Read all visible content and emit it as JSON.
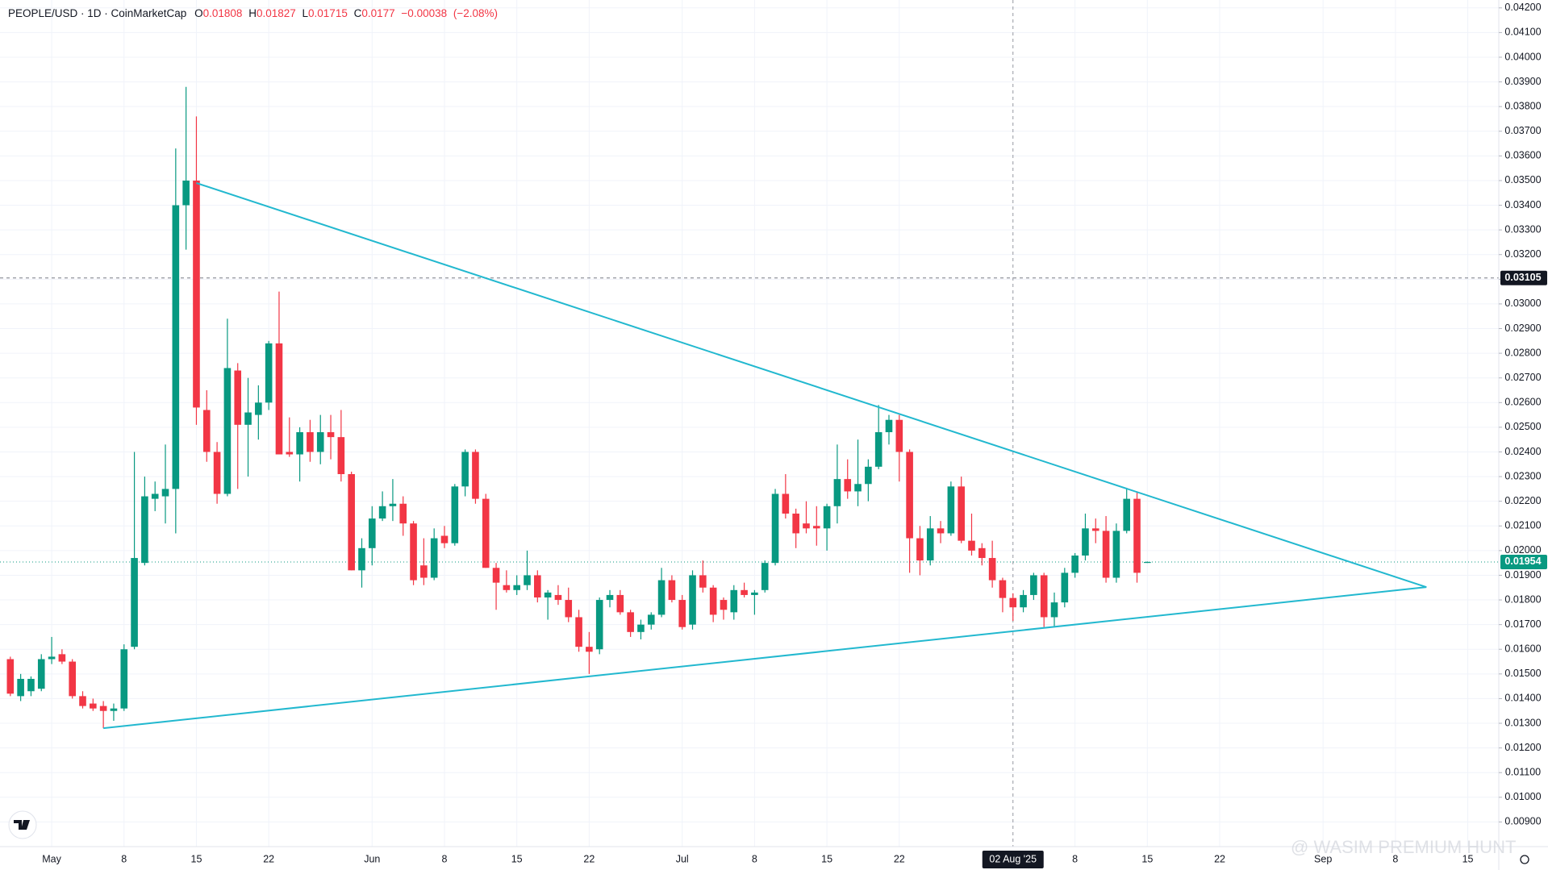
{
  "chart_data": {
    "type": "candlestick",
    "title": "PEOPLE/USD · 1D · CoinMarketCap",
    "ohlc_labels": [
      "O",
      "H",
      "L",
      "C"
    ],
    "change": {
      "value": -0.00038,
      "label": "−0.00038"
    },
    "change_pct": {
      "value": -2.08,
      "label": "(−2.08%)"
    },
    "up_color": "#089981",
    "down_color": "#f23645",
    "x": [
      "2025-04-27",
      "2025-04-28",
      "2025-04-29",
      "2025-04-30",
      "2025-05-01",
      "2025-05-02",
      "2025-05-03",
      "2025-05-04",
      "2025-05-05",
      "2025-05-06",
      "2025-05-07",
      "2025-05-08",
      "2025-05-09",
      "2025-05-10",
      "2025-05-11",
      "2025-05-12",
      "2025-05-13",
      "2025-05-14",
      "2025-05-15",
      "2025-05-16",
      "2025-05-17",
      "2025-05-18",
      "2025-05-19",
      "2025-05-20",
      "2025-05-21",
      "2025-05-22",
      "2025-05-23",
      "2025-05-24",
      "2025-05-25",
      "2025-05-26",
      "2025-05-27",
      "2025-05-28",
      "2025-05-29",
      "2025-05-30",
      "2025-05-31",
      "2025-06-01",
      "2025-06-02",
      "2025-06-03",
      "2025-06-04",
      "2025-06-05",
      "2025-06-06",
      "2025-06-07",
      "2025-06-08",
      "2025-06-09",
      "2025-06-10",
      "2025-06-11",
      "2025-06-12",
      "2025-06-13",
      "2025-06-14",
      "2025-06-15",
      "2025-06-16",
      "2025-06-17",
      "2025-06-18",
      "2025-06-19",
      "2025-06-20",
      "2025-06-21",
      "2025-06-22",
      "2025-06-23",
      "2025-06-24",
      "2025-06-25",
      "2025-06-26",
      "2025-06-27",
      "2025-06-28",
      "2025-06-29",
      "2025-06-30",
      "2025-07-01",
      "2025-07-02",
      "2025-07-03",
      "2025-07-04",
      "2025-07-05",
      "2025-07-06",
      "2025-07-07",
      "2025-07-08",
      "2025-07-09",
      "2025-07-10",
      "2025-07-11",
      "2025-07-12",
      "2025-07-13",
      "2025-07-14",
      "2025-07-15",
      "2025-07-16",
      "2025-07-17",
      "2025-07-18",
      "2025-07-19",
      "2025-07-20",
      "2025-07-21",
      "2025-07-22",
      "2025-07-23",
      "2025-07-24",
      "2025-07-25",
      "2025-07-26",
      "2025-07-27",
      "2025-07-28",
      "2025-07-29",
      "2025-07-30",
      "2025-07-31",
      "2025-08-01",
      "2025-08-02",
      "2025-08-03",
      "2025-08-04",
      "2025-08-05",
      "2025-08-06",
      "2025-08-07",
      "2025-08-08",
      "2025-08-09",
      "2025-08-10",
      "2025-08-11",
      "2025-08-12",
      "2025-08-13",
      "2025-08-14",
      "2025-08-15"
    ],
    "open": [
      0.0156,
      0.0141,
      0.0143,
      0.0144,
      0.0156,
      0.0158,
      0.0155,
      0.0141,
      0.0138,
      0.0137,
      0.0135,
      0.0136,
      0.0161,
      0.0195,
      0.0221,
      0.0222,
      0.0225,
      0.034,
      0.035,
      0.0257,
      0.024,
      0.0223,
      0.0273,
      0.0251,
      0.0255,
      0.026,
      0.0284,
      0.024,
      0.0239,
      0.0248,
      0.024,
      0.0248,
      0.0246,
      0.0231,
      0.0192,
      0.0201,
      0.0213,
      0.0218,
      0.0219,
      0.0211,
      0.0194,
      0.0189,
      0.0206,
      0.0203,
      0.0226,
      0.024,
      0.0221,
      0.0193,
      0.0186,
      0.0184,
      0.0186,
      0.019,
      0.0181,
      0.0182,
      0.018,
      0.0173,
      0.0161,
      0.016,
      0.018,
      0.0182,
      0.0175,
      0.0167,
      0.017,
      0.0174,
      0.0188,
      0.018,
      0.017,
      0.019,
      0.0185,
      0.018,
      0.0175,
      0.0184,
      0.0182,
      0.0184,
      0.0195,
      0.0223,
      0.0215,
      0.0211,
      0.021,
      0.0209,
      0.0218,
      0.0229,
      0.0224,
      0.0227,
      0.0234,
      0.0248,
      0.0253,
      0.024,
      0.0205,
      0.0196,
      0.0209,
      0.0207,
      0.0226,
      0.0204,
      0.0201,
      0.0197,
      0.0188,
      0.01808,
      0.0177,
      0.0182,
      0.019,
      0.0173,
      0.0179,
      0.0191,
      0.0198,
      0.0209,
      0.0208,
      0.0189,
      0.0208,
      0.0221,
      0.0195
    ],
    "high": [
      0.0157,
      0.015,
      0.0149,
      0.0158,
      0.0165,
      0.016,
      0.0156,
      0.0143,
      0.014,
      0.0139,
      0.0138,
      0.0162,
      0.024,
      0.023,
      0.0228,
      0.0243,
      0.0363,
      0.0388,
      0.0376,
      0.0265,
      0.0244,
      0.0294,
      0.0276,
      0.027,
      0.0267,
      0.0285,
      0.0305,
      0.0254,
      0.025,
      0.0253,
      0.0255,
      0.0255,
      0.0257,
      0.0232,
      0.0205,
      0.0218,
      0.0224,
      0.0229,
      0.0222,
      0.0212,
      0.0205,
      0.0209,
      0.021,
      0.0227,
      0.0241,
      0.0241,
      0.0223,
      0.0195,
      0.0192,
      0.019,
      0.02,
      0.0192,
      0.0184,
      0.0186,
      0.0185,
      0.0176,
      0.0167,
      0.0181,
      0.0184,
      0.0184,
      0.0176,
      0.0172,
      0.0175,
      0.0193,
      0.019,
      0.0182,
      0.0192,
      0.0196,
      0.0186,
      0.0181,
      0.0186,
      0.0187,
      0.0184,
      0.0196,
      0.0225,
      0.0231,
      0.0217,
      0.022,
      0.0218,
      0.0219,
      0.0243,
      0.0237,
      0.0245,
      0.0237,
      0.0259,
      0.0255,
      0.0255,
      0.0241,
      0.021,
      0.0214,
      0.0212,
      0.0228,
      0.023,
      0.0215,
      0.0203,
      0.0204,
      0.0189,
      0.01827,
      0.0184,
      0.0191,
      0.0191,
      0.0183,
      0.0193,
      0.0199,
      0.0215,
      0.0213,
      0.0214,
      0.0211,
      0.0225,
      0.0224,
      0.01956
    ],
    "low": [
      0.0141,
      0.0139,
      0.0141,
      0.0143,
      0.0154,
      0.0154,
      0.014,
      0.0136,
      0.0135,
      0.0128,
      0.0131,
      0.0135,
      0.016,
      0.0194,
      0.0216,
      0.0211,
      0.0207,
      0.0322,
      0.0251,
      0.0236,
      0.0219,
      0.0222,
      0.0225,
      0.023,
      0.0245,
      0.0257,
      0.0239,
      0.0238,
      0.0228,
      0.0236,
      0.0235,
      0.0237,
      0.0228,
      0.0192,
      0.0185,
      0.0194,
      0.0212,
      0.0212,
      0.0206,
      0.0186,
      0.0186,
      0.0188,
      0.0201,
      0.0202,
      0.0222,
      0.0219,
      0.0193,
      0.0176,
      0.0183,
      0.0182,
      0.0184,
      0.0179,
      0.0172,
      0.0178,
      0.0171,
      0.0159,
      0.015,
      0.0158,
      0.0177,
      0.0174,
      0.0165,
      0.0164,
      0.0168,
      0.0173,
      0.0179,
      0.0168,
      0.0168,
      0.0183,
      0.0171,
      0.0172,
      0.0172,
      0.0181,
      0.0174,
      0.0183,
      0.0194,
      0.0213,
      0.0201,
      0.0207,
      0.0202,
      0.02,
      0.0211,
      0.0221,
      0.0218,
      0.022,
      0.0233,
      0.0243,
      0.0228,
      0.0191,
      0.019,
      0.0194,
      0.0203,
      0.0206,
      0.0203,
      0.0198,
      0.0194,
      0.0185,
      0.0175,
      0.01715,
      0.0175,
      0.018,
      0.0169,
      0.0169,
      0.0177,
      0.0189,
      0.0196,
      0.0203,
      0.0187,
      0.0187,
      0.0207,
      0.0187,
      0.0195
    ],
    "close": [
      0.0142,
      0.0148,
      0.0148,
      0.0156,
      0.0157,
      0.0155,
      0.0141,
      0.0137,
      0.0136,
      0.0135,
      0.0136,
      0.016,
      0.0197,
      0.0222,
      0.0223,
      0.0225,
      0.034,
      0.035,
      0.0258,
      0.024,
      0.0223,
      0.0274,
      0.0251,
      0.0256,
      0.026,
      0.0284,
      0.0239,
      0.0239,
      0.0248,
      0.024,
      0.0248,
      0.0246,
      0.0231,
      0.0192,
      0.0201,
      0.0213,
      0.0218,
      0.0219,
      0.0211,
      0.0188,
      0.0189,
      0.0205,
      0.0203,
      0.0226,
      0.024,
      0.0221,
      0.0193,
      0.0187,
      0.0184,
      0.0186,
      0.019,
      0.0181,
      0.0183,
      0.018,
      0.0173,
      0.0161,
      0.0159,
      0.018,
      0.0182,
      0.0175,
      0.0167,
      0.017,
      0.0174,
      0.0188,
      0.018,
      0.0169,
      0.019,
      0.0185,
      0.0174,
      0.0176,
      0.0184,
      0.0182,
      0.0183,
      0.0195,
      0.0223,
      0.0215,
      0.0207,
      0.0209,
      0.0209,
      0.0218,
      0.0229,
      0.0224,
      0.0227,
      0.0234,
      0.0248,
      0.0253,
      0.024,
      0.0205,
      0.0196,
      0.0209,
      0.0207,
      0.0226,
      0.0204,
      0.02,
      0.0197,
      0.0188,
      0.01808,
      0.0177,
      0.0182,
      0.019,
      0.0173,
      0.0179,
      0.0191,
      0.0198,
      0.0209,
      0.0208,
      0.0189,
      0.0208,
      0.0221,
      0.0191,
      0.01954
    ],
    "xlim": [
      "2025-04-26",
      "2025-09-18"
    ],
    "xticks": [
      {
        "value": "2025-05-01",
        "label": "May"
      },
      {
        "value": "2025-05-08",
        "label": "8"
      },
      {
        "value": "2025-05-15",
        "label": "15"
      },
      {
        "value": "2025-05-22",
        "label": "22"
      },
      {
        "value": "2025-06-01",
        "label": "Jun"
      },
      {
        "value": "2025-06-08",
        "label": "8"
      },
      {
        "value": "2025-06-15",
        "label": "15"
      },
      {
        "value": "2025-06-22",
        "label": "22"
      },
      {
        "value": "2025-07-01",
        "label": "Jul"
      },
      {
        "value": "2025-07-08",
        "label": "8"
      },
      {
        "value": "2025-07-15",
        "label": "15"
      },
      {
        "value": "2025-07-22",
        "label": "22"
      },
      {
        "value": "2025-08-08",
        "label": "8"
      },
      {
        "value": "2025-08-15",
        "label": "15"
      },
      {
        "value": "2025-08-22",
        "label": "22"
      },
      {
        "value": "2025-09-01",
        "label": "Sep"
      },
      {
        "value": "2025-09-08",
        "label": "8"
      },
      {
        "value": "2025-09-15",
        "label": "15"
      }
    ],
    "ylim": [
      0.008,
      0.04232
    ],
    "yticks": [
      {
        "value": 0.042,
        "label": "0.04200"
      },
      {
        "value": 0.041,
        "label": "0.04100"
      },
      {
        "value": 0.04,
        "label": "0.04000"
      },
      {
        "value": 0.039,
        "label": "0.03900"
      },
      {
        "value": 0.038,
        "label": "0.03800"
      },
      {
        "value": 0.037,
        "label": "0.03700"
      },
      {
        "value": 0.036,
        "label": "0.03600"
      },
      {
        "value": 0.035,
        "label": "0.03500"
      },
      {
        "value": 0.034,
        "label": "0.03400"
      },
      {
        "value": 0.033,
        "label": "0.03300"
      },
      {
        "value": 0.032,
        "label": "0.03200"
      },
      {
        "value": 0.031,
        "label": "0.03100"
      },
      {
        "value": 0.03,
        "label": "0.03000"
      },
      {
        "value": 0.029,
        "label": "0.02900"
      },
      {
        "value": 0.028,
        "label": "0.02800"
      },
      {
        "value": 0.027,
        "label": "0.02700"
      },
      {
        "value": 0.026,
        "label": "0.02600"
      },
      {
        "value": 0.025,
        "label": "0.02500"
      },
      {
        "value": 0.024,
        "label": "0.02400"
      },
      {
        "value": 0.023,
        "label": "0.02300"
      },
      {
        "value": 0.022,
        "label": "0.02200"
      },
      {
        "value": 0.021,
        "label": "0.02100"
      },
      {
        "value": 0.02,
        "label": "0.02000"
      },
      {
        "value": 0.019,
        "label": "0.01900"
      },
      {
        "value": 0.018,
        "label": "0.01800"
      },
      {
        "value": 0.017,
        "label": "0.01700"
      },
      {
        "value": 0.016,
        "label": "0.01600"
      },
      {
        "value": 0.015,
        "label": "0.01500"
      },
      {
        "value": 0.014,
        "label": "0.01400"
      },
      {
        "value": 0.013,
        "label": "0.01300"
      },
      {
        "value": 0.012,
        "label": "0.01200"
      },
      {
        "value": 0.011,
        "label": "0.01100"
      },
      {
        "value": 0.01,
        "label": "0.01000"
      },
      {
        "value": 0.009,
        "label": "0.00900"
      }
    ],
    "grid": true,
    "hline": {
      "value": 0.03105,
      "color": "#787b86",
      "label_bg": "#131722"
    },
    "last_price": {
      "value": 0.01954,
      "color": "#089981"
    },
    "crosshair": {
      "x": "2025-08-02",
      "label": "02 Aug '25"
    },
    "trendline_color": "#22b8cf",
    "trendlines": [
      {
        "x": [
          "2025-05-15",
          "2025-09-11"
        ],
        "values": [
          0.0349,
          0.01852
        ]
      },
      {
        "x": [
          "2025-05-06",
          "2025-09-11"
        ],
        "values": [
          0.0128,
          0.01852
        ]
      }
    ],
    "watermark": "@ WASIM PREMIUM HUNT"
  }
}
